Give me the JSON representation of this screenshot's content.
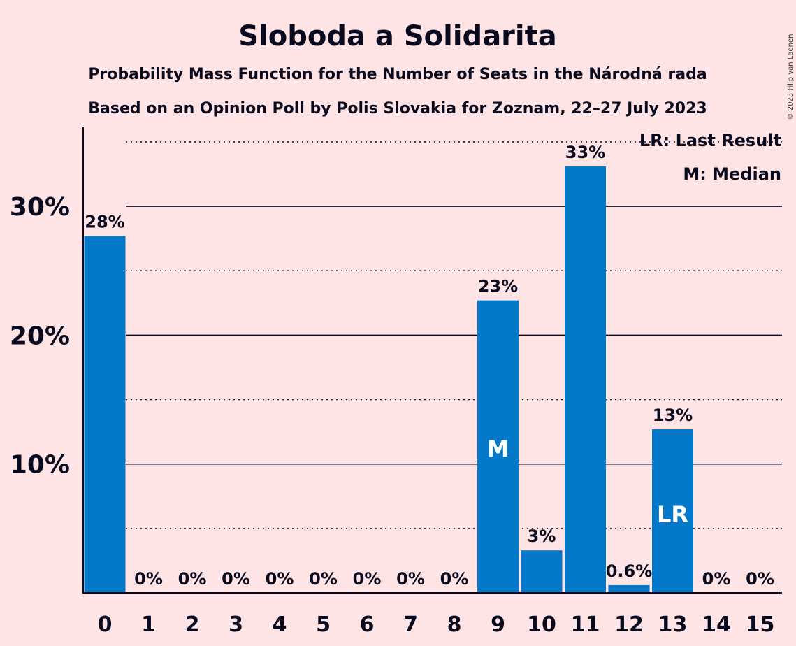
{
  "copyright": "© 2023 Filip van Laenen",
  "legend": {
    "last_result": "LR: Last Result",
    "median": "M: Median"
  },
  "colors": {
    "bar": "#0579C9",
    "background": "#FFE4E6",
    "text": "#0a0a1e"
  },
  "chart_data": {
    "type": "bar",
    "title": "Sloboda a Solidarita",
    "subtitle": "Probability Mass Function for the Number of Seats in the Národná rada",
    "subtitle2": "Based on an Opinion Poll by Polis Slovakia for Zoznam, 22–27 July 2023",
    "xlabel": "",
    "ylabel": "",
    "ylim": [
      0,
      36
    ],
    "grid": true,
    "legend_position": "top-right",
    "yticks": [
      10,
      20,
      30
    ],
    "ytick_labels": [
      "10%",
      "20%",
      "30%"
    ],
    "categories": [
      "0",
      "1",
      "2",
      "3",
      "4",
      "5",
      "6",
      "7",
      "8",
      "9",
      "10",
      "11",
      "12",
      "13",
      "14",
      "15"
    ],
    "values": [
      27.7,
      0,
      0,
      0,
      0,
      0,
      0,
      0,
      0,
      22.7,
      3.3,
      33.1,
      0.6,
      12.7,
      0,
      0
    ],
    "labels": [
      "28%",
      "0%",
      "0%",
      "0%",
      "0%",
      "0%",
      "0%",
      "0%",
      "0%",
      "23%",
      "3%",
      "33%",
      "0.6%",
      "13%",
      "0%",
      "0%"
    ],
    "markers": {
      "9": "M",
      "13": "LR"
    }
  }
}
